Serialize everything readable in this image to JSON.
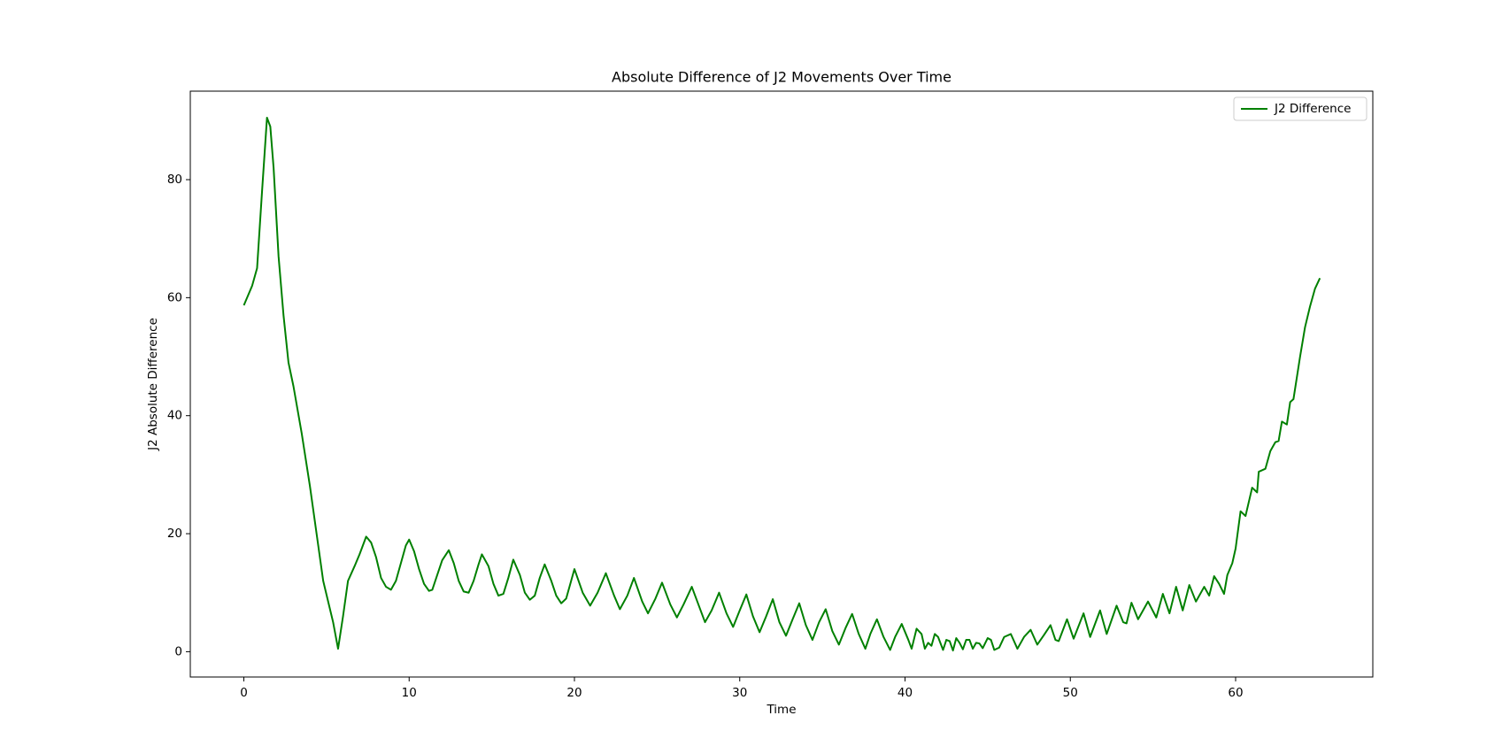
{
  "chart_data": {
    "type": "line",
    "title": "Absolute Difference of J2 Movements Over Time",
    "xlabel": "Time",
    "ylabel": "J2 Absolute Difference",
    "x": [
      0,
      0.5,
      0.8,
      1.1,
      1.4,
      1.6,
      1.8,
      2.1,
      2.4,
      2.7,
      3.0,
      3.5,
      4.0,
      4.5,
      4.8,
      5.1,
      5.4,
      5.7,
      6.0,
      6.3,
      6.7,
      7.0,
      7.4,
      7.7,
      8.0,
      8.3,
      8.6,
      8.9,
      9.2,
      9.5,
      9.8,
      10.0,
      10.3,
      10.6,
      10.9,
      11.2,
      11.4,
      11.7,
      12.0,
      12.4,
      12.7,
      13.0,
      13.3,
      13.6,
      13.9,
      14.2,
      14.4,
      14.8,
      15.1,
      15.4,
      15.7,
      16.0,
      16.3,
      16.7,
      17.0,
      17.3,
      17.6,
      17.9,
      18.2,
      18.6,
      18.9,
      19.2,
      19.5,
      19.8,
      20.0,
      20.5,
      20.95,
      21.4,
      21.9,
      22.4,
      22.75,
      23.2,
      23.6,
      24.1,
      24.45,
      24.9,
      25.3,
      25.8,
      26.2,
      26.6,
      27.1,
      27.5,
      27.9,
      28.3,
      28.75,
      29.2,
      29.6,
      30.0,
      30.4,
      30.8,
      31.2,
      31.6,
      32.0,
      32.4,
      32.8,
      33.2,
      33.6,
      34.0,
      34.4,
      34.8,
      35.2,
      35.6,
      36.0,
      36.4,
      36.8,
      37.2,
      37.6,
      37.9,
      38.3,
      38.7,
      39.1,
      39.4,
      39.8,
      40.2,
      40.4,
      40.7,
      41.0,
      41.2,
      41.4,
      41.6,
      41.8,
      42.0,
      42.3,
      42.5,
      42.7,
      42.9,
      43.1,
      43.3,
      43.5,
      43.7,
      43.9,
      44.1,
      44.3,
      44.5,
      44.7,
      45.0,
      45.2,
      45.4,
      45.7,
      46.0,
      46.4,
      46.8,
      47.2,
      47.6,
      48.0,
      48.4,
      48.8,
      49.1,
      49.3,
      49.8,
      50.2,
      50.8,
      51.2,
      51.8,
      52.2,
      52.8,
      53.2,
      53.4,
      53.7,
      54.1,
      54.7,
      55.2,
      55.6,
      56.0,
      56.4,
      56.8,
      57.2,
      57.6,
      58.1,
      58.4,
      58.7,
      59.0,
      59.3,
      59.5,
      59.8,
      60.0,
      60.3,
      60.6,
      61.0,
      61.3,
      61.4,
      61.8,
      62.1,
      62.4,
      62.6,
      62.8,
      63.1,
      63.3,
      63.5,
      63.9,
      64.2,
      64.5,
      64.8,
      65.1
    ],
    "series": [
      {
        "name": "J2 Difference",
        "color": "#008000",
        "values": [
          58.7,
          62,
          65,
          78,
          90.5,
          89,
          82,
          67,
          57,
          49,
          45,
          37,
          28,
          18,
          12,
          8.5,
          5,
          0.5,
          6,
          12,
          14.5,
          16.5,
          19.5,
          18.5,
          16,
          12.5,
          11,
          10.5,
          12,
          15,
          18,
          19,
          17,
          14,
          11.5,
          10.3,
          10.5,
          13,
          15.5,
          17.2,
          15,
          12,
          10.2,
          10,
          12,
          14.8,
          16.5,
          14.5,
          11.5,
          9.5,
          9.8,
          12.5,
          15.6,
          13,
          10,
          8.8,
          9.5,
          12.5,
          14.8,
          12,
          9.5,
          8.2,
          9,
          12,
          14,
          10,
          7.8,
          10,
          13.3,
          9.5,
          7.2,
          9.5,
          12.5,
          8.5,
          6.5,
          9,
          11.7,
          8,
          5.8,
          8,
          11,
          8,
          5,
          7,
          10,
          6.5,
          4.2,
          7,
          9.7,
          6,
          3.3,
          6,
          8.9,
          5,
          2.7,
          5.5,
          8.2,
          4.5,
          2,
          5,
          7.2,
          3.5,
          1.2,
          4,
          6.4,
          3,
          0.5,
          3,
          5.5,
          2.5,
          0.3,
          2.5,
          4.7,
          2,
          0.5,
          3.9,
          3,
          0.5,
          1.5,
          1.0,
          3.0,
          2.5,
          0.3,
          2,
          1.8,
          0.2,
          2.3,
          1.5,
          0.4,
          2,
          2,
          0.5,
          1.5,
          1.4,
          0.6,
          2.3,
          2,
          0.3,
          0.7,
          2.5,
          3,
          0.5,
          2.5,
          3.7,
          1.2,
          2.8,
          4.5,
          2,
          1.8,
          5.5,
          2.2,
          6.5,
          2.5,
          7,
          3,
          7.8,
          5,
          4.8,
          8.3,
          5.5,
          8.5,
          5.8,
          9.8,
          6.5,
          11,
          7,
          11.3,
          8.5,
          11,
          9.5,
          12.8,
          11.5,
          9.8,
          13,
          15,
          17.5,
          23.8,
          23,
          27.8,
          27,
          30.5,
          31,
          34,
          35.5,
          35.7,
          39,
          38.5,
          42.3,
          42.8,
          50,
          55,
          58.5,
          61.5,
          63.3
        ]
      }
    ],
    "xlim": [
      -3.24,
      68.3
    ],
    "ylim": [
      -4.29,
      95.0
    ],
    "xticks": [
      0,
      10,
      20,
      30,
      40,
      50,
      60
    ],
    "yticks": [
      0,
      20,
      40,
      60,
      80
    ],
    "legend": "upper right"
  }
}
